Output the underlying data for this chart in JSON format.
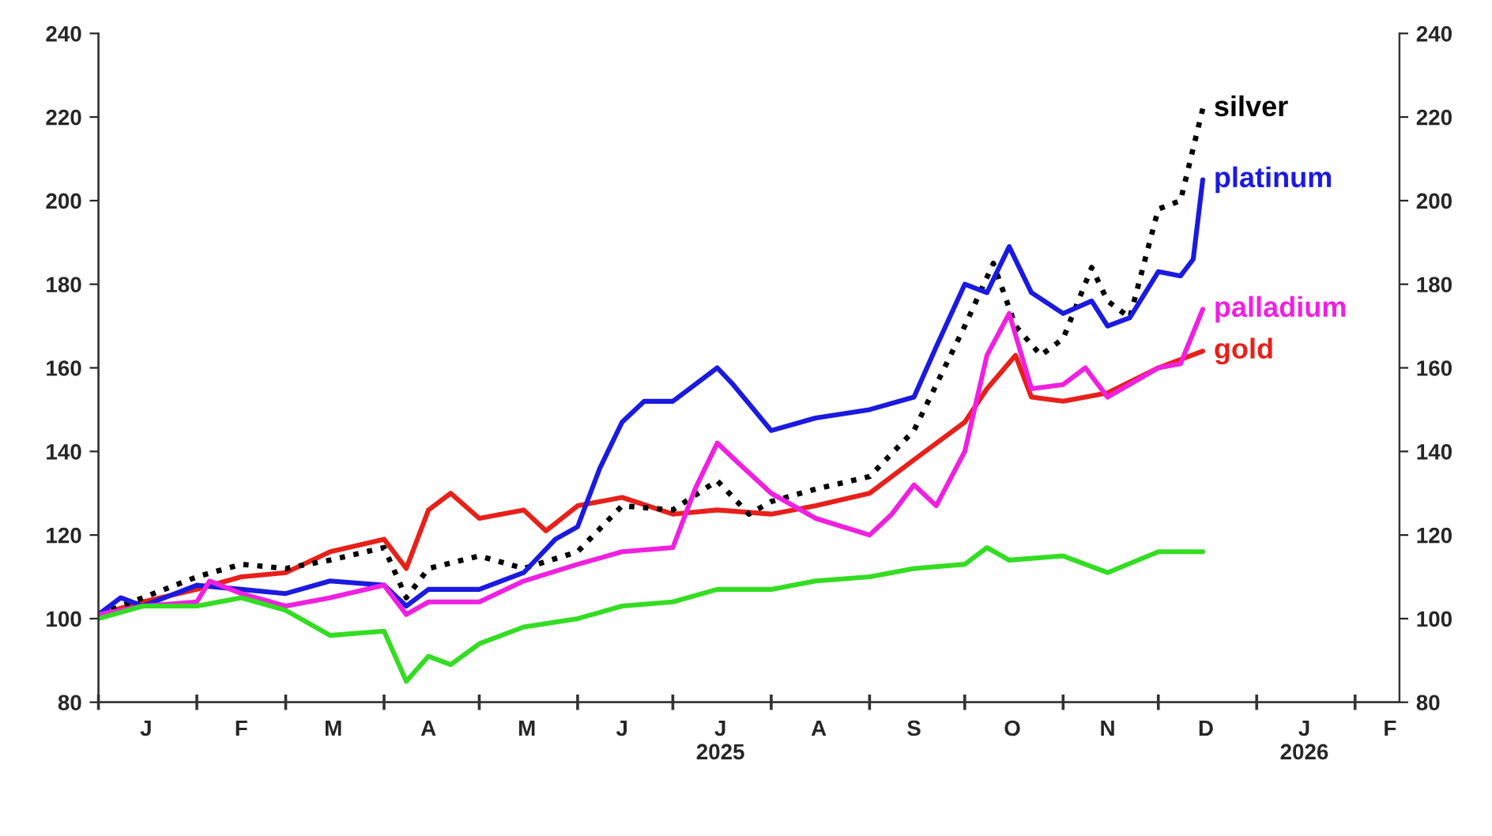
{
  "chart_data": {
    "type": "line",
    "xlim": [
      "2025-01-01",
      "2026-02-15"
    ],
    "xticks": [
      {
        "value": "2025-01-01",
        "label": null
      },
      {
        "value": "2025-01-16",
        "label": "J"
      },
      {
        "value": "2025-02-01",
        "label": null
      },
      {
        "value": "2025-02-15",
        "label": "F"
      },
      {
        "value": "2025-03-01",
        "label": null
      },
      {
        "value": "2025-03-16",
        "label": "M"
      },
      {
        "value": "2025-04-01",
        "label": null
      },
      {
        "value": "2025-04-15",
        "label": "A"
      },
      {
        "value": "2025-05-01",
        "label": null
      },
      {
        "value": "2025-05-16",
        "label": "M"
      },
      {
        "value": "2025-06-01",
        "label": null
      },
      {
        "value": "2025-06-15",
        "label": "J"
      },
      {
        "value": "2025-07-01",
        "label": null
      },
      {
        "value": "2025-07-16",
        "label": "J\n2025"
      },
      {
        "value": "2025-08-01",
        "label": null
      },
      {
        "value": "2025-08-16",
        "label": "A"
      },
      {
        "value": "2025-09-01",
        "label": null
      },
      {
        "value": "2025-09-15",
        "label": "S"
      },
      {
        "value": "2025-10-01",
        "label": null
      },
      {
        "value": "2025-10-16",
        "label": "O"
      },
      {
        "value": "2025-11-01",
        "label": null
      },
      {
        "value": "2025-11-15",
        "label": "N"
      },
      {
        "value": "2025-12-01",
        "label": null
      },
      {
        "value": "2025-12-16",
        "label": "D"
      },
      {
        "value": "2026-01-01",
        "label": null
      },
      {
        "value": "2026-01-16",
        "label": "J\n2026"
      },
      {
        "value": "2026-02-01",
        "label": null
      },
      {
        "value": "2026-02-12",
        "label": "F"
      }
    ],
    "ylim": [
      80,
      240
    ],
    "yticks": [
      80,
      100,
      120,
      140,
      160,
      180,
      200,
      220,
      240
    ],
    "y2lim": [
      80,
      240
    ],
    "y2ticks": [
      80,
      100,
      120,
      140,
      160,
      180,
      200,
      220,
      240
    ],
    "grid": false,
    "legend": false,
    "line_style": "solid",
    "marker": "none",
    "series": [
      {
        "name": "gold",
        "color": "#e8201a",
        "x": [
          "2025-01-01",
          "2025-01-15",
          "2025-02-01",
          "2025-02-15",
          "2025-03-01",
          "2025-03-15",
          "2025-04-01",
          "2025-04-08",
          "2025-04-15",
          "2025-04-22",
          "2025-05-01",
          "2025-05-15",
          "2025-05-22",
          "2025-06-01",
          "2025-06-15",
          "2025-07-01",
          "2025-07-15",
          "2025-08-01",
          "2025-08-15",
          "2025-09-01",
          "2025-09-15",
          "2025-10-01",
          "2025-10-08",
          "2025-10-17",
          "2025-10-22",
          "2025-11-01",
          "2025-11-15",
          "2025-12-01",
          "2025-12-15"
        ],
        "values": [
          101,
          104,
          107,
          110,
          111,
          116,
          119,
          112,
          126,
          130,
          124,
          126,
          121,
          127,
          129,
          125,
          126,
          125,
          127,
          130,
          138,
          147,
          155,
          163,
          153,
          152,
          154,
          160,
          164
        ]
      },
      {
        "name": "silver",
        "color": "#000000",
        "line_style": "dotted",
        "x": [
          "2025-01-01",
          "2025-01-15",
          "2025-02-01",
          "2025-02-15",
          "2025-03-01",
          "2025-03-15",
          "2025-04-01",
          "2025-04-08",
          "2025-04-15",
          "2025-05-01",
          "2025-05-15",
          "2025-06-01",
          "2025-06-15",
          "2025-07-01",
          "2025-07-15",
          "2025-07-25",
          "2025-08-01",
          "2025-08-15",
          "2025-09-01",
          "2025-09-15",
          "2025-10-01",
          "2025-10-10",
          "2025-10-17",
          "2025-10-25",
          "2025-11-01",
          "2025-11-10",
          "2025-11-15",
          "2025-11-22",
          "2025-12-01",
          "2025-12-08",
          "2025-12-15"
        ],
        "values": [
          101,
          105,
          110,
          113,
          112,
          114,
          117,
          105,
          112,
          115,
          112,
          116,
          127,
          126,
          133,
          125,
          128,
          131,
          134,
          145,
          170,
          185,
          170,
          163,
          167,
          184,
          176,
          172,
          198,
          200,
          222
        ]
      },
      {
        "name": "platinum",
        "color": "#1a1ae0",
        "x": [
          "2025-01-01",
          "2025-01-08",
          "2025-01-15",
          "2025-02-01",
          "2025-02-15",
          "2025-03-01",
          "2025-03-15",
          "2025-04-01",
          "2025-04-08",
          "2025-04-15",
          "2025-05-01",
          "2025-05-15",
          "2025-05-25",
          "2025-06-01",
          "2025-06-08",
          "2025-06-15",
          "2025-06-22",
          "2025-07-01",
          "2025-07-15",
          "2025-07-20",
          "2025-08-01",
          "2025-08-15",
          "2025-09-01",
          "2025-09-15",
          "2025-09-22",
          "2025-10-01",
          "2025-10-08",
          "2025-10-15",
          "2025-10-22",
          "2025-11-01",
          "2025-11-10",
          "2025-11-15",
          "2025-11-22",
          "2025-12-01",
          "2025-12-08",
          "2025-12-12",
          "2025-12-15"
        ],
        "values": [
          101,
          105,
          103,
          108,
          107,
          106,
          109,
          108,
          103,
          107,
          107,
          111,
          119,
          122,
          136,
          147,
          152,
          152,
          160,
          156,
          145,
          148,
          150,
          153,
          165,
          180,
          178,
          189,
          178,
          173,
          176,
          170,
          172,
          183,
          182,
          186,
          205
        ]
      },
      {
        "name": "palladium",
        "color": "#f020e0",
        "x": [
          "2025-01-01",
          "2025-01-15",
          "2025-02-01",
          "2025-02-05",
          "2025-02-15",
          "2025-03-01",
          "2025-03-15",
          "2025-04-01",
          "2025-04-08",
          "2025-04-15",
          "2025-05-01",
          "2025-05-15",
          "2025-06-01",
          "2025-06-15",
          "2025-07-01",
          "2025-07-08",
          "2025-07-15",
          "2025-07-22",
          "2025-08-01",
          "2025-08-15",
          "2025-09-01",
          "2025-09-08",
          "2025-09-15",
          "2025-09-22",
          "2025-10-01",
          "2025-10-08",
          "2025-10-15",
          "2025-10-22",
          "2025-11-01",
          "2025-11-08",
          "2025-11-15",
          "2025-12-01",
          "2025-12-08",
          "2025-12-15"
        ],
        "values": [
          101,
          103,
          104,
          109,
          106,
          103,
          105,
          108,
          101,
          104,
          104,
          109,
          113,
          116,
          117,
          131,
          142,
          137,
          130,
          124,
          120,
          125,
          132,
          127,
          140,
          163,
          173,
          155,
          156,
          160,
          153,
          160,
          161,
          174
        ]
      },
      {
        "color": "#33dd22",
        "x": [
          "2025-01-01",
          "2025-01-15",
          "2025-02-01",
          "2025-02-15",
          "2025-03-01",
          "2025-03-15",
          "2025-04-01",
          "2025-04-08",
          "2025-04-15",
          "2025-04-22",
          "2025-05-01",
          "2025-05-15",
          "2025-06-01",
          "2025-06-15",
          "2025-07-01",
          "2025-07-15",
          "2025-08-01",
          "2025-08-15",
          "2025-09-01",
          "2025-09-15",
          "2025-10-01",
          "2025-10-08",
          "2025-10-15",
          "2025-11-01",
          "2025-11-15",
          "2025-12-01",
          "2025-12-15"
        ],
        "values": [
          100,
          103,
          103,
          105,
          102,
          96,
          97,
          85,
          91,
          89,
          94,
          98,
          100,
          103,
          104,
          107,
          107,
          109,
          110,
          112,
          113,
          117,
          114,
          115,
          111,
          116,
          116
        ]
      }
    ]
  }
}
